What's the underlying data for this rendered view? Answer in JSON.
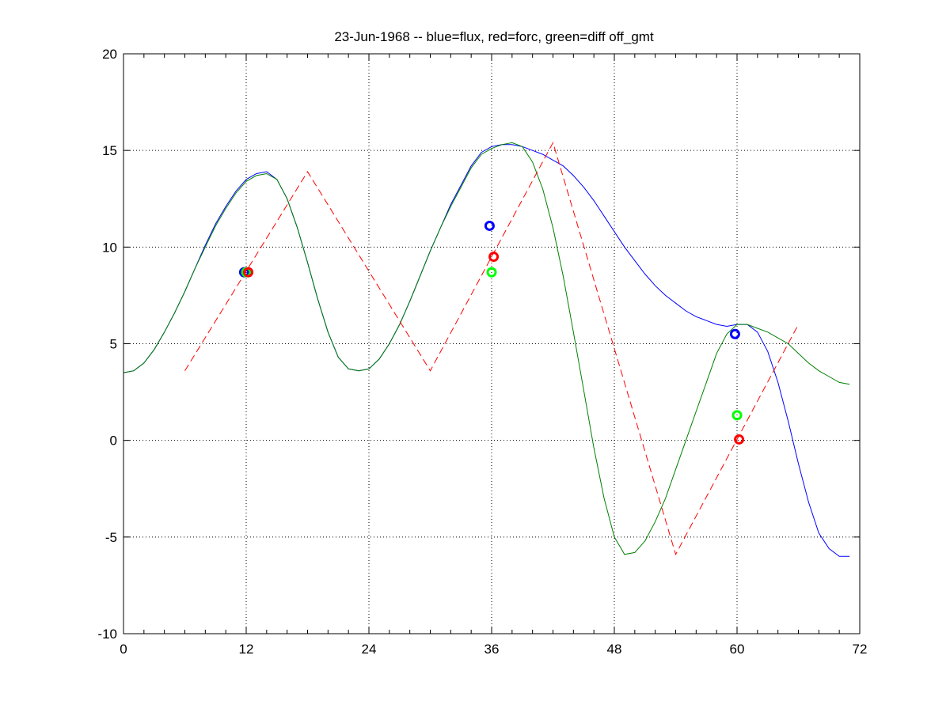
{
  "chart_data": {
    "type": "line",
    "title": "23-Jun-1968 -- blue=flux, red=forc, green=diff off_gmt",
    "xlabel": "",
    "ylabel": "",
    "xlim": [
      0,
      72
    ],
    "ylim": [
      -10,
      20
    ],
    "xticks": [
      0,
      12,
      24,
      36,
      48,
      60,
      72
    ],
    "yticks": [
      -10,
      -5,
      0,
      5,
      10,
      15,
      20
    ],
    "grid": true,
    "series": [
      {
        "color": "#0000ff",
        "style": "solid",
        "x": [
          0,
          1,
          2,
          3,
          4,
          5,
          6,
          7,
          8,
          9,
          10,
          11,
          12,
          13,
          14,
          15,
          16,
          17,
          18,
          19,
          20,
          21,
          22,
          23,
          24,
          25,
          26,
          27,
          28,
          29,
          30,
          31,
          32,
          33,
          34,
          35,
          36,
          37,
          38,
          39,
          40,
          41,
          42,
          43,
          44,
          45,
          46,
          47,
          48,
          49,
          50,
          51,
          52,
          53,
          54,
          55,
          56,
          57,
          58,
          59,
          60,
          61,
          62,
          63,
          64,
          65,
          66,
          67,
          68,
          69,
          70,
          71
        ],
        "y": [
          3.5,
          3.6,
          4.0,
          4.7,
          5.6,
          6.6,
          7.7,
          8.9,
          10.1,
          11.2,
          12.1,
          12.9,
          13.5,
          13.8,
          13.9,
          13.5,
          12.5,
          11.0,
          9.2,
          7.3,
          5.6,
          4.3,
          3.7,
          3.6,
          3.7,
          4.2,
          5.0,
          6.0,
          7.2,
          8.5,
          9.8,
          11.0,
          12.2,
          13.2,
          14.2,
          14.9,
          15.2,
          15.3,
          15.3,
          15.2,
          15.0,
          14.8,
          14.5,
          14.2,
          13.7,
          13.1,
          12.4,
          11.6,
          10.8,
          10.0,
          9.3,
          8.6,
          8.0,
          7.5,
          7.1,
          6.7,
          6.4,
          6.2,
          6.0,
          5.9,
          6.0,
          6.0,
          5.6,
          4.6,
          3.0,
          1.0,
          -1.2,
          -3.2,
          -4.8,
          -5.6,
          -6.0,
          -6.0
        ]
      },
      {
        "color": "#008000",
        "style": "solid",
        "x": [
          0,
          1,
          2,
          3,
          4,
          5,
          6,
          7,
          8,
          9,
          10,
          11,
          12,
          13,
          14,
          15,
          16,
          17,
          18,
          19,
          20,
          21,
          22,
          23,
          24,
          25,
          26,
          27,
          28,
          29,
          30,
          31,
          32,
          33,
          34,
          35,
          36,
          37,
          38,
          39,
          40,
          41,
          42,
          43,
          44,
          45,
          46,
          47,
          48,
          49,
          50,
          51,
          52,
          53,
          54,
          55,
          56,
          57,
          58,
          59,
          60,
          61,
          62,
          63,
          64,
          65,
          66,
          67,
          68,
          69,
          70,
          71
        ],
        "y": [
          3.5,
          3.6,
          4.0,
          4.7,
          5.6,
          6.6,
          7.7,
          8.9,
          10.0,
          11.1,
          12.0,
          12.8,
          13.4,
          13.7,
          13.8,
          13.5,
          12.5,
          11.0,
          9.2,
          7.3,
          5.6,
          4.3,
          3.7,
          3.6,
          3.7,
          4.2,
          5.0,
          6.0,
          7.2,
          8.5,
          9.8,
          11.0,
          12.1,
          13.1,
          14.1,
          14.8,
          15.1,
          15.3,
          15.4,
          15.2,
          14.4,
          13.0,
          11.0,
          8.5,
          5.6,
          2.6,
          -0.4,
          -3.0,
          -5.0,
          -5.9,
          -5.8,
          -5.2,
          -4.2,
          -3.0,
          -1.5,
          0.0,
          1.5,
          3.0,
          4.5,
          5.5,
          6.0,
          6.0,
          5.8,
          5.6,
          5.3,
          5.0,
          4.5,
          4.0,
          3.6,
          3.3,
          3.0,
          2.9
        ]
      },
      {
        "color": "#ff0000",
        "style": "dashed",
        "x": [
          6,
          18,
          30,
          42,
          54,
          66
        ],
        "y": [
          3.6,
          13.9,
          3.6,
          15.4,
          -5.9,
          6.0
        ]
      }
    ],
    "markers": [
      {
        "series_color": "#0000ff",
        "x": 11.8,
        "y": 8.7
      },
      {
        "series_color": "#00ff00",
        "x": 12.0,
        "y": 8.7
      },
      {
        "series_color": "#ff0000",
        "x": 12.2,
        "y": 8.7
      },
      {
        "series_color": "#0000ff",
        "x": 35.8,
        "y": 11.1
      },
      {
        "series_color": "#ff0000",
        "x": 36.2,
        "y": 9.5
      },
      {
        "series_color": "#00ff00",
        "x": 36.0,
        "y": 8.7
      },
      {
        "series_color": "#0000ff",
        "x": 59.8,
        "y": 5.5
      },
      {
        "series_color": "#00ff00",
        "x": 60.0,
        "y": 1.3
      },
      {
        "series_color": "#ff0000",
        "x": 60.2,
        "y": 0.05
      }
    ]
  }
}
